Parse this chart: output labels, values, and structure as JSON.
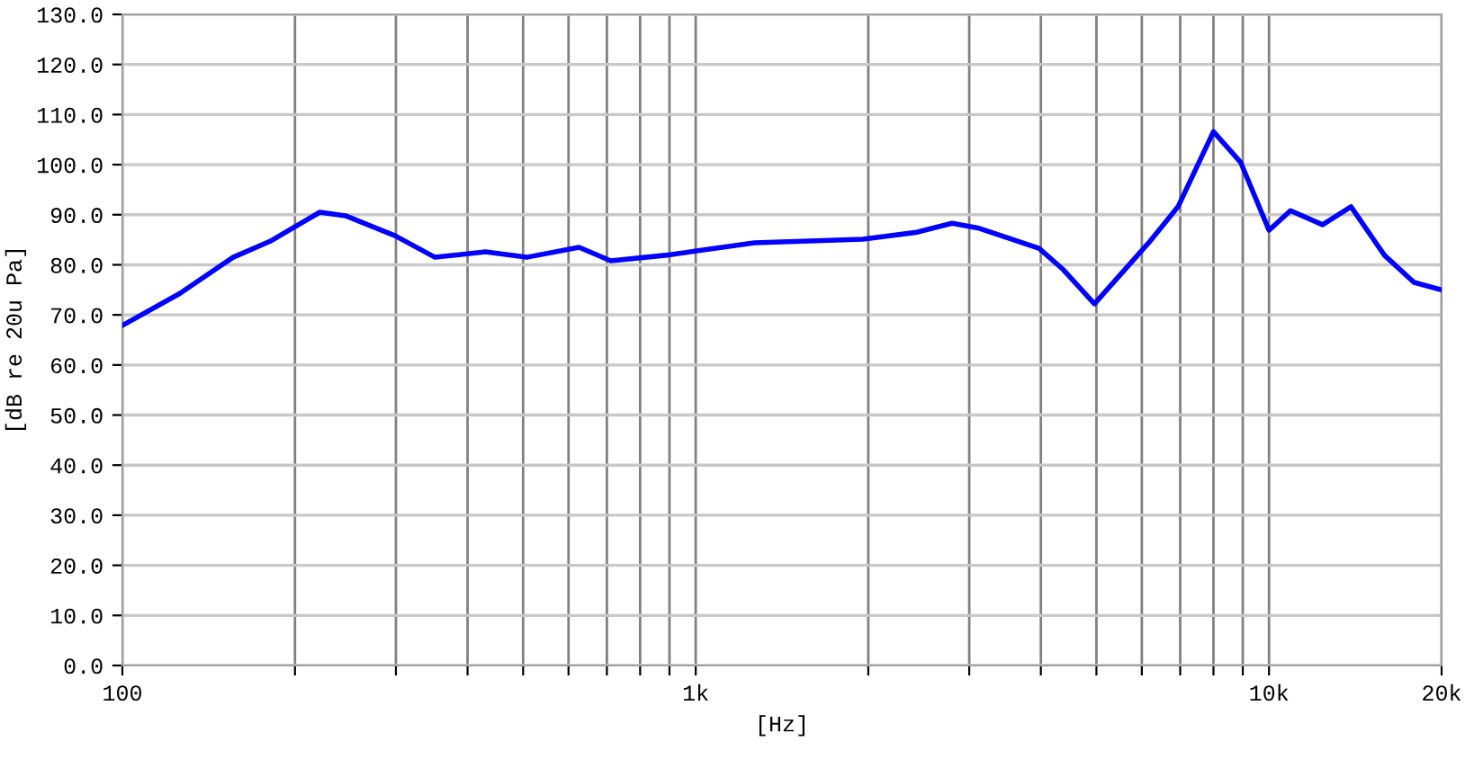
{
  "chart_data": {
    "type": "line",
    "xlabel": "[Hz]",
    "ylabel": "[dB re 20u Pa]",
    "log": "x",
    "x": [
      100,
      126,
      156,
      181,
      200,
      221,
      245,
      299,
      351,
      430,
      507,
      626,
      711,
      885,
      1023,
      1266,
      1957,
      2430,
      2800,
      3120,
      3970,
      4380,
      4960,
      6200,
      6940,
      8000,
      8920,
      10000,
      10900,
      12400,
      13900,
      15900,
      17900,
      20000
    ],
    "series": [
      {
        "color": "#0000ff",
        "values": [
          67.9,
          74.3,
          81.5,
          84.7,
          87.6,
          90.5,
          89.8,
          85.8,
          81.5,
          82.6,
          81.5,
          83.5,
          80.8,
          81.9,
          82.9,
          84.4,
          85.1,
          86.5,
          88.3,
          87.3,
          83.3,
          79.0,
          72.2,
          84.7,
          91.6,
          106.6,
          100.5,
          86.9,
          90.8,
          88.0,
          91.6,
          81.9,
          76.5,
          75.0
        ]
      }
    ],
    "xlim": [
      100,
      20000
    ],
    "xticks": [
      100,
      {
        "value": 200,
        "label": null
      },
      {
        "value": 300,
        "label": null
      },
      {
        "value": 400,
        "label": null
      },
      {
        "value": 500,
        "label": null
      },
      {
        "value": 600,
        "label": null
      },
      {
        "value": 700,
        "label": null
      },
      {
        "value": 800,
        "label": null
      },
      {
        "value": 900,
        "label": null
      },
      {
        "value": 1000,
        "label": "1k"
      },
      {
        "value": 2000,
        "label": null
      },
      {
        "value": 3000,
        "label": null
      },
      {
        "value": 4000,
        "label": null
      },
      {
        "value": 5000,
        "label": null
      },
      {
        "value": 6000,
        "label": null
      },
      {
        "value": 7000,
        "label": null
      },
      {
        "value": 8000,
        "label": null
      },
      {
        "value": 9000,
        "label": null
      },
      {
        "value": 10000,
        "label": "10k"
      },
      {
        "value": 20000,
        "label": "20k"
      }
    ],
    "ylim": [
      0,
      130
    ],
    "yticks": [
      {
        "value": 0,
        "label": "0.0"
      },
      {
        "value": 10,
        "label": "10.0"
      },
      {
        "value": 20,
        "label": "20.0"
      },
      {
        "value": 30,
        "label": "30.0"
      },
      {
        "value": 40,
        "label": "40.0"
      },
      {
        "value": 50,
        "label": "50.0"
      },
      {
        "value": 60,
        "label": "60.0"
      },
      {
        "value": 70,
        "label": "70.0"
      },
      {
        "value": 80,
        "label": "80.0"
      },
      {
        "value": 90,
        "label": "90.0"
      },
      {
        "value": 100,
        "label": "100.0"
      },
      {
        "value": 110,
        "label": "110.0"
      },
      {
        "value": 120,
        "label": "120.0"
      },
      {
        "value": 130,
        "label": "130.0"
      }
    ],
    "grid": true,
    "marker": "none",
    "line_style": "solid"
  }
}
